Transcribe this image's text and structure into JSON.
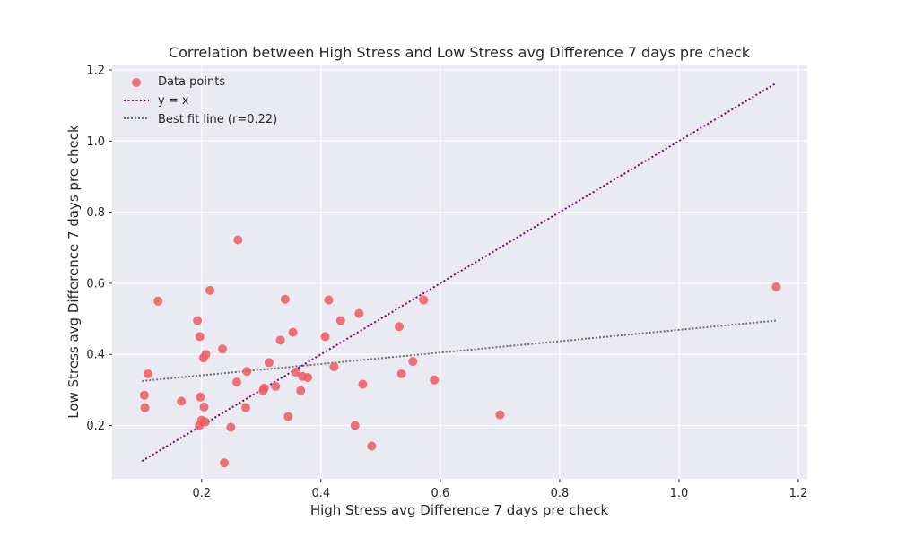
{
  "chart_data": {
    "type": "scatter",
    "title": "Correlation between High Stress and Low Stress avg Difference 7 days pre  check",
    "xlabel": "High Stress avg Difference 7 days pre  check",
    "ylabel": "Low Stress avg Difference 7 days pre  check",
    "xlim": [
      0.05,
      1.215
    ],
    "ylim": [
      0.05,
      1.215
    ],
    "xticks": [
      0.2,
      0.4,
      0.6,
      0.8,
      1.0,
      1.2
    ],
    "yticks": [
      0.2,
      0.4,
      0.6,
      0.8,
      1.0,
      1.2
    ],
    "xtick_labels": [
      "0.2",
      "0.4",
      "0.6",
      "0.8",
      "1.0",
      "1.2"
    ],
    "ytick_labels": [
      "0.2",
      "0.4",
      "0.6",
      "0.8",
      "1.0",
      "1.2"
    ],
    "grid": true,
    "legend_position": "upper-left",
    "series": [
      {
        "name": "Data points",
        "kind": "scatter",
        "color": "#f05a5e",
        "points": [
          [
            0.104,
            0.285
          ],
          [
            0.105,
            0.25
          ],
          [
            0.11,
            0.345
          ],
          [
            0.127,
            0.55
          ],
          [
            0.166,
            0.268
          ],
          [
            0.193,
            0.495
          ],
          [
            0.196,
            0.2
          ],
          [
            0.197,
            0.45
          ],
          [
            0.198,
            0.28
          ],
          [
            0.2,
            0.215
          ],
          [
            0.203,
            0.39
          ],
          [
            0.204,
            0.252
          ],
          [
            0.206,
            0.21
          ],
          [
            0.207,
            0.4
          ],
          [
            0.214,
            0.58
          ],
          [
            0.235,
            0.415
          ],
          [
            0.238,
            0.095
          ],
          [
            0.249,
            0.195
          ],
          [
            0.259,
            0.322
          ],
          [
            0.261,
            0.722
          ],
          [
            0.274,
            0.25
          ],
          [
            0.276,
            0.352
          ],
          [
            0.303,
            0.298
          ],
          [
            0.305,
            0.305
          ],
          [
            0.313,
            0.377
          ],
          [
            0.324,
            0.31
          ],
          [
            0.332,
            0.44
          ],
          [
            0.34,
            0.555
          ],
          [
            0.345,
            0.225
          ],
          [
            0.353,
            0.462
          ],
          [
            0.358,
            0.35
          ],
          [
            0.366,
            0.298
          ],
          [
            0.369,
            0.338
          ],
          [
            0.378,
            0.335
          ],
          [
            0.407,
            0.45
          ],
          [
            0.413,
            0.553
          ],
          [
            0.422,
            0.365
          ],
          [
            0.433,
            0.495
          ],
          [
            0.457,
            0.2
          ],
          [
            0.464,
            0.515
          ],
          [
            0.47,
            0.316
          ],
          [
            0.485,
            0.142
          ],
          [
            0.531,
            0.478
          ],
          [
            0.535,
            0.345
          ],
          [
            0.554,
            0.38
          ],
          [
            0.572,
            0.553
          ],
          [
            0.59,
            0.328
          ],
          [
            0.7,
            0.23
          ],
          [
            1.163,
            0.59
          ]
        ]
      },
      {
        "name": "y = x",
        "kind": "line",
        "color": "#800080",
        "style": "dotted",
        "x": [
          0.1,
          1.163
        ],
        "y": [
          0.1,
          1.163
        ]
      },
      {
        "name": "Best fit line (r=0.22)",
        "kind": "line",
        "color": "#707070",
        "style": "dashed",
        "x": [
          0.1,
          1.163
        ],
        "y": [
          0.325,
          0.495
        ]
      }
    ]
  }
}
